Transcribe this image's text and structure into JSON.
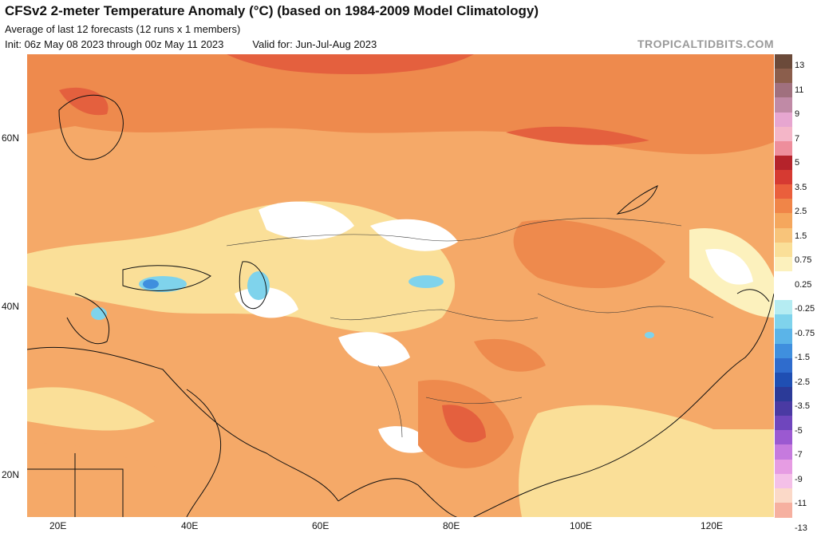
{
  "header": {
    "title": "CFSv2 2-meter Temperature Anomaly (°C) (based on 1984-2009 Model Climatology)",
    "subtitle": "Average of last 12 forecasts (12 runs x 1 members)",
    "init": "Init: 06z May 08 2023 through 00z May 11 2023",
    "valid": "Valid for: Jun-Jul-Aug 2023",
    "brand": "TROPICALTIDBITS.COM"
  },
  "map": {
    "lat_labels": [
      "60N",
      "40N",
      "20N"
    ],
    "lon_labels": [
      "20E",
      "40E",
      "60E",
      "80E",
      "100E",
      "120E"
    ]
  },
  "colorbar": {
    "labels": [
      "13",
      "11",
      "9",
      "7",
      "5",
      "3.5",
      "2.5",
      "1.5",
      "0.75",
      "0.25",
      "-0.25",
      "-0.75",
      "-1.5",
      "-2.5",
      "-3.5",
      "-5",
      "-7",
      "-9",
      "-11",
      "-13"
    ],
    "colors": [
      "#6b4a3a",
      "#8b5e4c",
      "#a0707e",
      "#c08aa6",
      "#e7a6d0",
      "#f4b6c8",
      "#ee8e9c",
      "#b5232b",
      "#d63a32",
      "#ea5f3c",
      "#f08548",
      "#f5a75d",
      "#f8c47a",
      "#fadf98",
      "#fcf1bd",
      "#ffffff",
      "#ffffff",
      "#b5ecf2",
      "#7fd3ec",
      "#5bb4e8",
      "#3f8fde",
      "#2f6ccd",
      "#1f4fb3",
      "#2b3a98",
      "#4a3aa3",
      "#6f46bd",
      "#9b59d1",
      "#c67ade",
      "#e69ce3",
      "#f4c0e8",
      "#fbd9c8",
      "#f6b0a0"
    ]
  }
}
